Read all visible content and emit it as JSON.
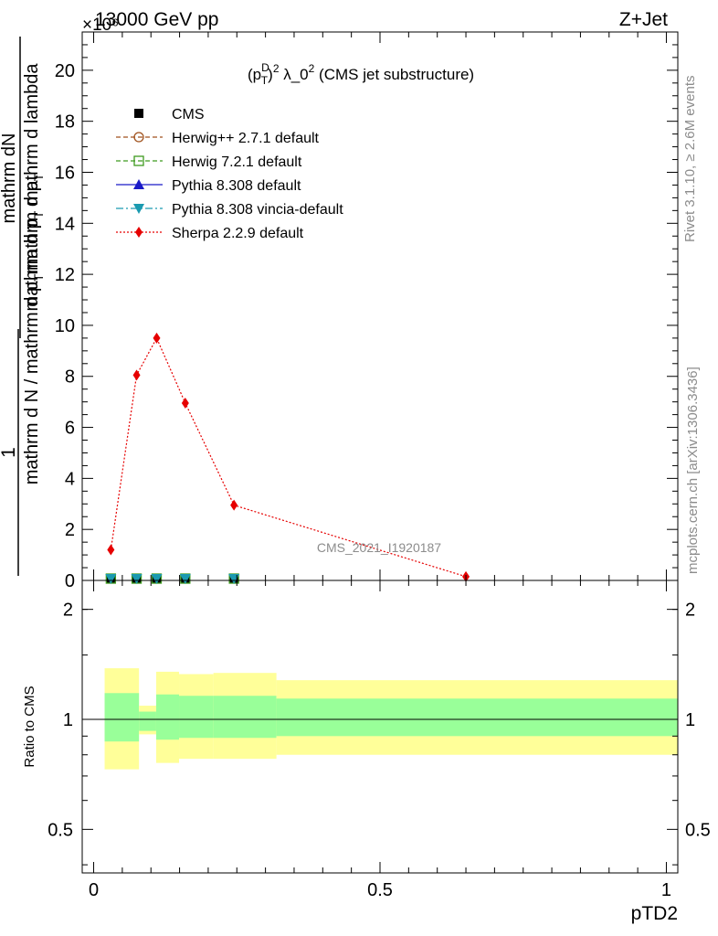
{
  "header": {
    "left_title": "13000 GeV pp",
    "right_title": "Z+Jet",
    "exponent_label": "×10⁶"
  },
  "side_labels": {
    "rivet": "Rivet 3.1.10, ≥ 2.6M events",
    "mcplots": "mcplots.cern.ch [arXiv:1306.3436]"
  },
  "main_panel": {
    "title_prefix": "(p",
    "title_sup1": "D",
    "title_sub1": "T",
    "title_sup2": "2",
    "title_mid": " λ_0",
    "title_sup3": "2",
    "title_suffix": " (CMS jet substructure)",
    "ylabel_numerator": "1",
    "ylabel_frac_top": "mathrm dN",
    "ylabel_frac_bottom": "mathrm d p",
    "ylabel_frac_bottom_sub": "T",
    "ylabel_frac_bottom_rest": " mathrm d lambda",
    "ylabel_denominator": "mathrm d N / mathrm d p",
    "ylabel_denominator_sub": "T",
    "ylabel_denominator_rest": "mathrm d p",
    "ylabel_denominator_sub2": "T",
    "watermark": "CMS_2021_I1920187"
  },
  "ratio_panel": {
    "ylabel": "Ratio to CMS"
  },
  "xlabel": "pTD2",
  "legend": [
    {
      "label": "CMS",
      "color": "#000000",
      "marker": "square-filled",
      "line": "none"
    },
    {
      "label": "Herwig++ 2.7.1 default",
      "color": "#a0521d",
      "marker": "circle-open",
      "line": "dashed"
    },
    {
      "label": "Herwig 7.2.1 default",
      "color": "#3e9a1f",
      "marker": "square-open",
      "line": "dashed"
    },
    {
      "label": "Pythia 8.308 default",
      "color": "#1a1ac8",
      "marker": "triangle-up",
      "line": "solid"
    },
    {
      "label": "Pythia 8.308 vincia-default",
      "color": "#1a9ab0",
      "marker": "triangle-down",
      "line": "dashdot"
    },
    {
      "label": "Sherpa 2.2.9 default",
      "color": "#e60000",
      "marker": "diamond",
      "line": "dotted"
    }
  ],
  "chart_data": [
    {
      "type": "line",
      "xlabel": "pTD2",
      "ylim": [
        0,
        21.5
      ],
      "xlim": [
        -0.02,
        1.02
      ],
      "yticks": [
        0,
        2,
        4,
        6,
        8,
        10,
        12,
        14,
        16,
        18,
        20
      ],
      "y_scale_note": "×10⁶",
      "series": [
        {
          "name": "CMS",
          "x": [
            0.03,
            0.075,
            0.11,
            0.16,
            0.245
          ],
          "values": [
            0,
            0,
            0,
            0,
            0
          ]
        },
        {
          "name": "Herwig 7.2.1 default",
          "x": [
            0.03,
            0.075,
            0.11,
            0.16,
            0.245
          ],
          "values": [
            0,
            0,
            0,
            0,
            0
          ]
        },
        {
          "name": "Pythia 8.308 vincia-default",
          "x": [
            0.03,
            0.075,
            0.11,
            0.16,
            0.245
          ],
          "values": [
            0,
            0,
            0,
            0,
            0
          ]
        },
        {
          "name": "Sherpa 2.2.9 default",
          "x": [
            0.03,
            0.075,
            0.11,
            0.16,
            0.245,
            0.65
          ],
          "values": [
            1.2,
            8.05,
            9.5,
            6.95,
            2.95,
            0.15
          ]
        }
      ]
    },
    {
      "type": "area",
      "ylabel": "Ratio to CMS",
      "scale": "log",
      "ylim": [
        0.38,
        2.4
      ],
      "yticks": [
        0.5,
        1,
        2
      ],
      "xticks": [
        0,
        0.5,
        1
      ],
      "reference_line": 1,
      "bins": [
        {
          "x0": 0.0,
          "x1": 0.06,
          "inner": [
            0.87,
            1.18
          ],
          "outer": [
            0.73,
            1.38
          ]
        },
        {
          "x0": 0.06,
          "x1": 0.09,
          "inner": [
            0.93,
            1.05
          ],
          "outer": [
            0.91,
            1.09
          ]
        },
        {
          "x0": 0.09,
          "x1": 0.13,
          "inner": [
            0.88,
            1.17
          ],
          "outer": [
            0.76,
            1.35
          ]
        },
        {
          "x0": 0.13,
          "x1": 0.19,
          "inner": [
            0.89,
            1.16
          ],
          "outer": [
            0.78,
            1.33
          ]
        },
        {
          "x0": 0.19,
          "x1": 0.3,
          "inner": [
            0.89,
            1.16
          ],
          "outer": [
            0.78,
            1.34
          ]
        },
        {
          "x0": 0.3,
          "x1": 1.0,
          "inner": [
            0.9,
            1.14
          ],
          "outer": [
            0.8,
            1.28
          ]
        }
      ],
      "colors": {
        "inner": "#99ff99",
        "outer": "#ffff99"
      }
    }
  ]
}
